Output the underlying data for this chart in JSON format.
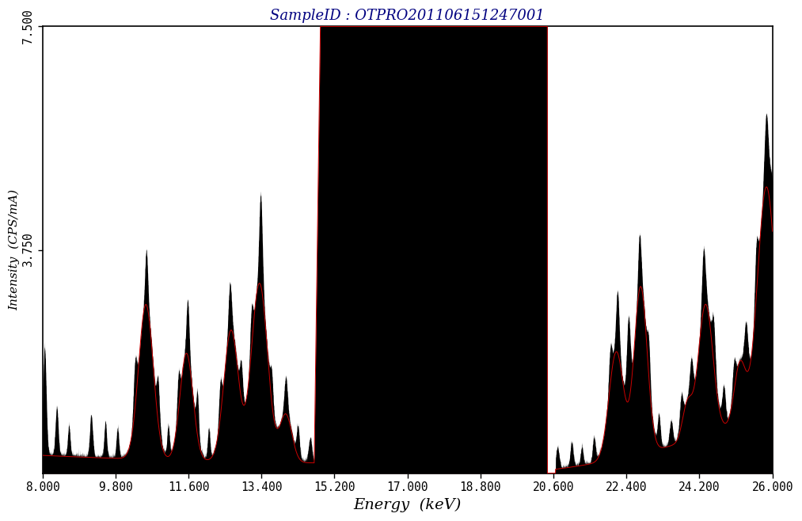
{
  "title": "SampleID : OTPRO201106151247001",
  "xlabel": "Energy  (keV)",
  "ylabel": "Intensity  (CPS/mA)",
  "xlim": [
    8.0,
    26.0
  ],
  "ylim": [
    0.0,
    7.5
  ],
  "yticks": [
    3.75,
    7.5
  ],
  "ytick_labels": [
    "3.750",
    "7.500"
  ],
  "xticks": [
    8.0,
    9.8,
    11.6,
    13.4,
    15.2,
    17.0,
    18.8,
    20.6,
    22.4,
    24.2,
    26.0
  ],
  "xtick_labels": [
    "8.000",
    "9.800",
    "11.600",
    "13.400",
    "15.200",
    "17.000",
    "18.800",
    "20.600",
    "22.400",
    "24.200",
    "26.000"
  ],
  "background_color": "#ffffff",
  "plot_bg_color": "#ffffff",
  "black_fill_color": "#000000",
  "red_fill_color": "#cc0000",
  "red_line_color": "#cc0000",
  "title_color": "#000080",
  "axis_label_color": "#000000",
  "tick_color": "#000000",
  "sat_start": 14.85,
  "sat_end": 20.45,
  "dip_start": 20.45,
  "dip_end": 20.65
}
